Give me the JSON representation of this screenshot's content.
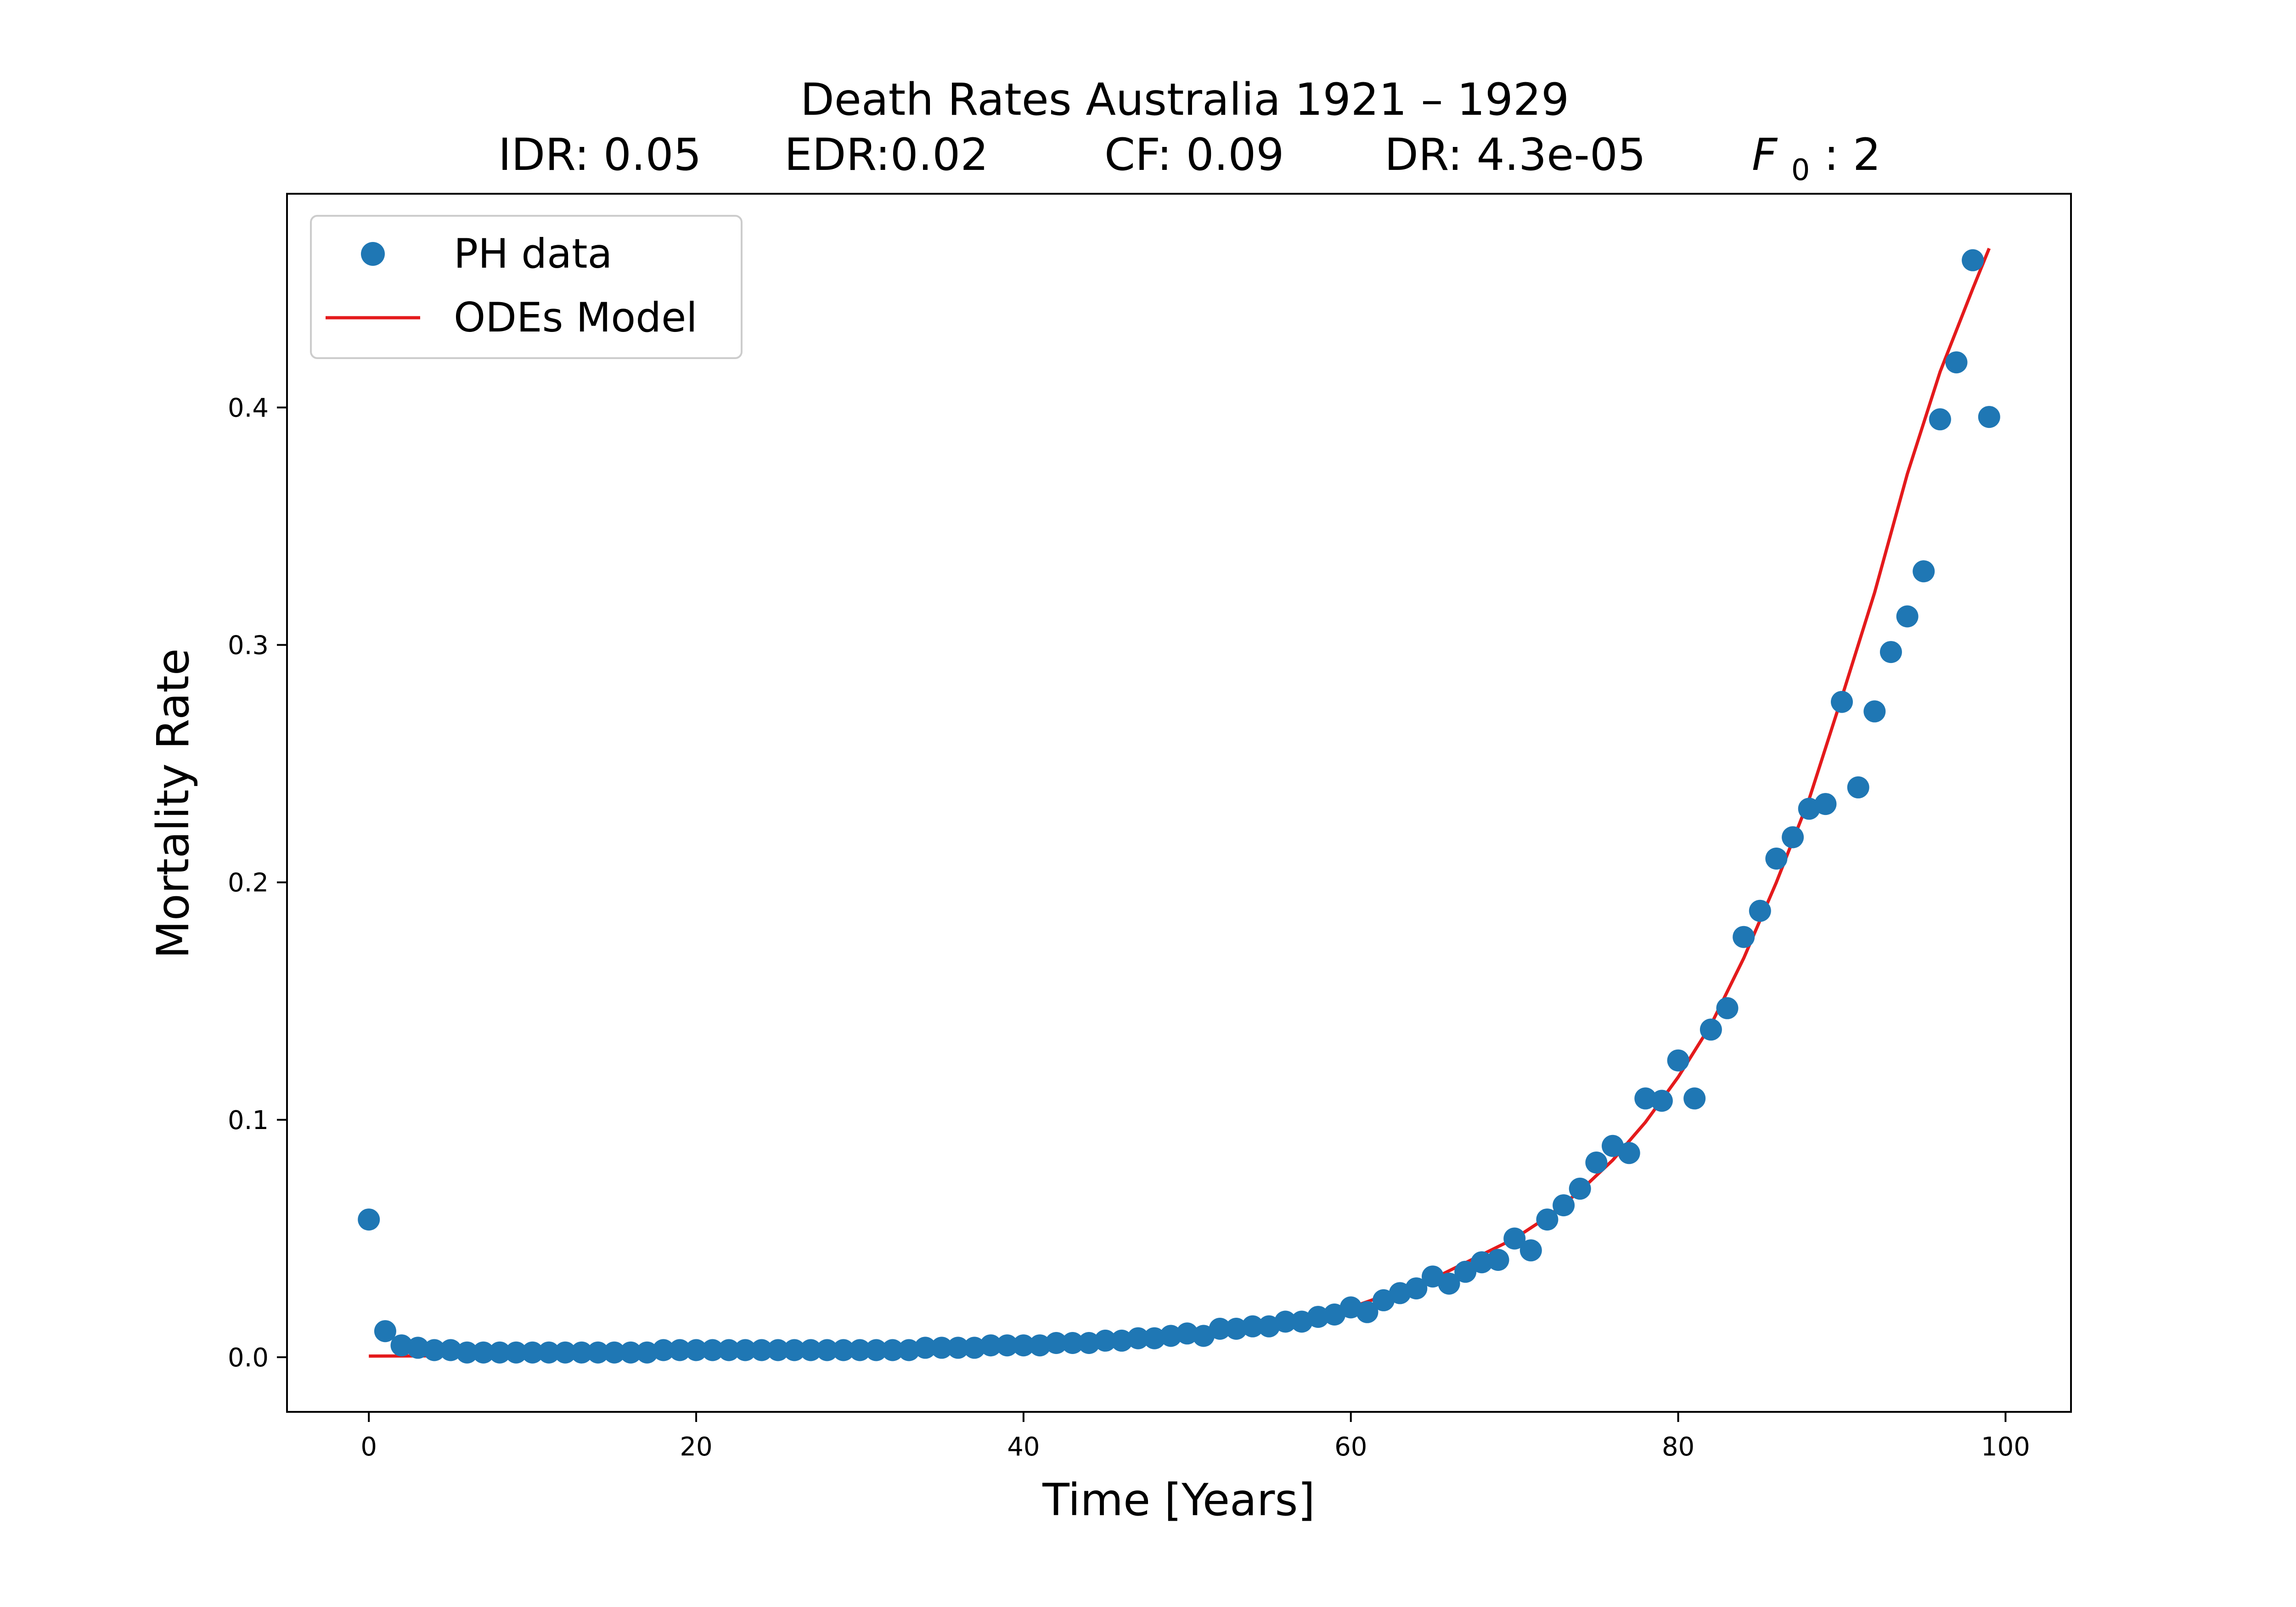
{
  "chart_data": {
    "type": "scatter",
    "title": "Death Rates Australia 1921 – 1929",
    "subtitle_parts": [
      "IDR: 0.05",
      "EDR:0.02",
      "CF: 0.09",
      "DR: 4.3e-05",
      "F",
      "0",
      ": 2"
    ],
    "xlabel": "Time [Years]",
    "ylabel": "Mortality Rate",
    "xlim": [
      -5,
      104
    ],
    "ylim": [
      -0.023,
      0.49
    ],
    "xticks": [
      0,
      20,
      40,
      60,
      80,
      100
    ],
    "yticks": [
      0.0,
      0.1,
      0.2,
      0.3,
      0.4
    ],
    "xtick_labels": [
      "0",
      "20",
      "40",
      "60",
      "80",
      "100"
    ],
    "ytick_labels": [
      "0.0",
      "0.1",
      "0.2",
      "0.3",
      "0.4"
    ],
    "grid": false,
    "legend_position": "top-left",
    "legend": [
      "PH data",
      "ODEs Model"
    ],
    "series": [
      {
        "name": "PH data",
        "kind": "scatter",
        "color": "#1f77b4",
        "x": [
          0,
          1,
          2,
          3,
          4,
          5,
          6,
          7,
          8,
          9,
          10,
          11,
          12,
          13,
          14,
          15,
          16,
          17,
          18,
          19,
          20,
          21,
          22,
          23,
          24,
          25,
          26,
          27,
          28,
          29,
          30,
          31,
          32,
          33,
          34,
          35,
          36,
          37,
          38,
          39,
          40,
          41,
          42,
          43,
          44,
          45,
          46,
          47,
          48,
          49,
          50,
          51,
          52,
          53,
          54,
          55,
          56,
          57,
          58,
          59,
          60,
          61,
          62,
          63,
          64,
          65,
          66,
          67,
          68,
          69,
          70,
          71,
          72,
          73,
          74,
          75,
          76,
          77,
          78,
          79,
          80,
          81,
          82,
          83,
          84,
          85,
          86,
          87,
          88,
          89,
          90,
          91,
          92,
          93,
          94,
          95,
          96,
          97,
          98,
          99
        ],
        "y": [
          0.058,
          0.011,
          0.005,
          0.004,
          0.003,
          0.003,
          0.002,
          0.002,
          0.002,
          0.002,
          0.002,
          0.002,
          0.002,
          0.002,
          0.002,
          0.002,
          0.002,
          0.002,
          0.003,
          0.003,
          0.003,
          0.003,
          0.003,
          0.003,
          0.003,
          0.003,
          0.003,
          0.003,
          0.003,
          0.003,
          0.003,
          0.003,
          0.003,
          0.003,
          0.004,
          0.004,
          0.004,
          0.004,
          0.005,
          0.005,
          0.005,
          0.005,
          0.006,
          0.006,
          0.006,
          0.007,
          0.007,
          0.008,
          0.008,
          0.009,
          0.01,
          0.009,
          0.012,
          0.012,
          0.013,
          0.013,
          0.015,
          0.015,
          0.017,
          0.018,
          0.021,
          0.019,
          0.024,
          0.027,
          0.029,
          0.034,
          0.031,
          0.036,
          0.04,
          0.041,
          0.05,
          0.045,
          0.058,
          0.064,
          0.071,
          0.082,
          0.089,
          0.086,
          0.109,
          0.108,
          0.125,
          0.109,
          0.138,
          0.147,
          0.177,
          0.188,
          0.21,
          0.219,
          0.231,
          0.233,
          0.276,
          0.24,
          0.272,
          0.297,
          0.312,
          0.331,
          0.395,
          0.419,
          0.462,
          0.396
        ]
      },
      {
        "name": "ODEs Model",
        "kind": "line",
        "color": "#e41a1c",
        "x": [
          0,
          5,
          10,
          15,
          20,
          25,
          30,
          35,
          40,
          45,
          50,
          55,
          60,
          65,
          70,
          72,
          74,
          76,
          78,
          80,
          82,
          84,
          86,
          88,
          90,
          92,
          94,
          96,
          98,
          99
        ],
        "y": [
          0.0005,
          0.0006,
          0.0009,
          0.0013,
          0.0018,
          0.0024,
          0.003,
          0.0036,
          0.0044,
          0.0056,
          0.009,
          0.014,
          0.021,
          0.033,
          0.05,
          0.059,
          0.07,
          0.083,
          0.099,
          0.118,
          0.14,
          0.168,
          0.2,
          0.235,
          0.278,
          0.322,
          0.372,
          0.415,
          0.45,
          0.467
        ]
      }
    ]
  }
}
